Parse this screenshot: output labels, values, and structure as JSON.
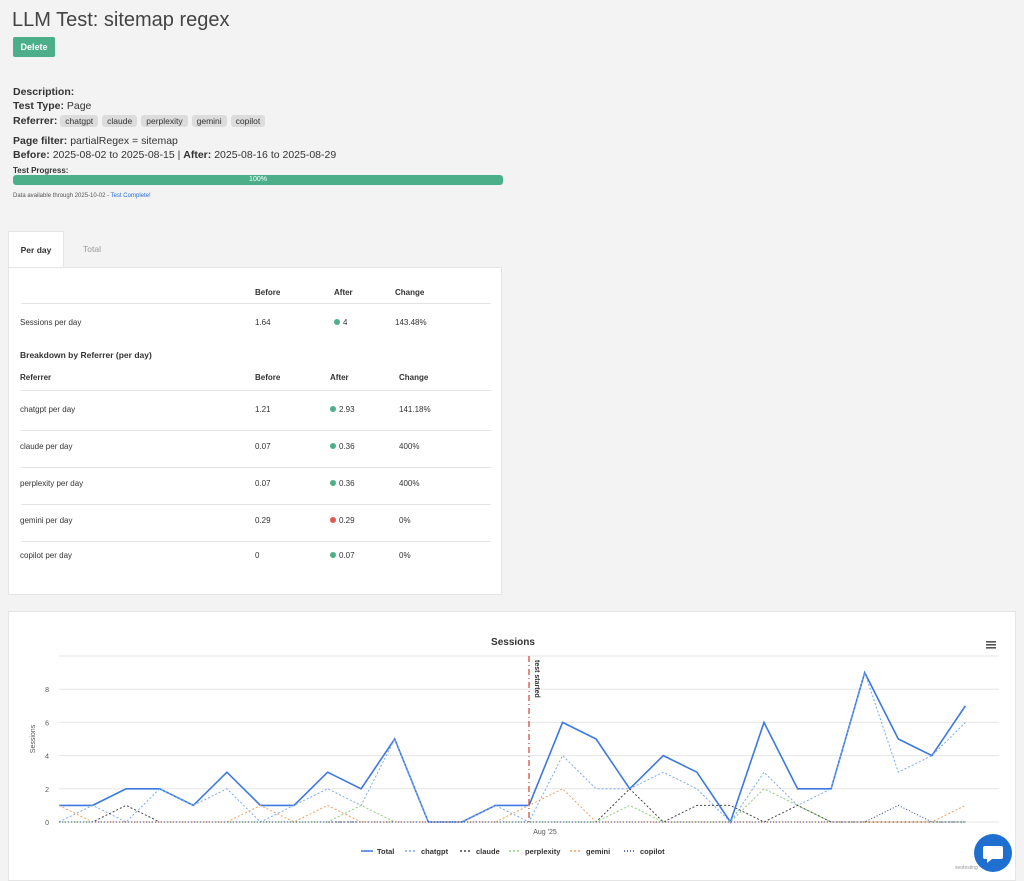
{
  "page": {
    "title": "LLM Test: sitemap regex",
    "delete_label": "Delete"
  },
  "info": {
    "description_label": "Description:",
    "test_type_label": "Test Type:",
    "test_type_value": "Page",
    "referrer_label": "Referrer:",
    "referrers": [
      "chatgpt",
      "claude",
      "perplexity",
      "gemini",
      "copilot"
    ],
    "page_filter_label": "Page filter:",
    "page_filter_value": "partialRegex = sitemap",
    "before_label": "Before:",
    "before_value": "2025-08-02 to 2025-08-15 |",
    "after_label": "After:",
    "after_value": "2025-08-16 to 2025-08-29",
    "progress_label": "Test Progress:",
    "progress_text": "100%",
    "progress_value": 1.0,
    "data_available": "Data available through 2025-10-02 -",
    "test_complete": "Test Complete!"
  },
  "tabs": [
    {
      "label": "Per day",
      "active": true
    },
    {
      "label": "Total",
      "active": false
    }
  ],
  "summary": {
    "headers": [
      "Before",
      "After",
      "Change"
    ],
    "row": {
      "label": "Sessions per day",
      "before": "1.64",
      "after": "4",
      "after_status": "up",
      "change": "143.48%"
    }
  },
  "breakdown": {
    "title": "Breakdown by Referrer (per day)",
    "headers": [
      "Referrer",
      "Before",
      "After",
      "Change"
    ],
    "rows": [
      {
        "label": "chatgpt per day",
        "before": "1.21",
        "after": "2.93",
        "status": "up",
        "change": "141.18%"
      },
      {
        "label": "claude per day",
        "before": "0.07",
        "after": "0.36",
        "status": "up",
        "change": "400%"
      },
      {
        "label": "perplexity per day",
        "before": "0.07",
        "after": "0.36",
        "status": "up",
        "change": "400%"
      },
      {
        "label": "gemini per day",
        "before": "0.29",
        "after": "0.29",
        "status": "down",
        "change": "0%"
      },
      {
        "label": "copilot per day",
        "before": "0",
        "after": "0.07",
        "status": "up",
        "change": "0%"
      }
    ]
  },
  "colors": {
    "up": "#4daf8a",
    "down": "#e05a4f",
    "accent": "#4daf8a"
  },
  "chart_data": {
    "type": "line",
    "title": "Sessions",
    "ylabel": "Sessions",
    "xlabel": "",
    "ylim": [
      0,
      10
    ],
    "yticks": [
      0,
      2,
      4,
      6,
      8
    ],
    "x_tick_label": "Aug '25",
    "x_tick_index": 14,
    "annotation": {
      "label": "test started",
      "index": 14
    },
    "credits": "seotesting",
    "n_points": 29,
    "series": [
      {
        "name": "Total",
        "color": "#3c78e0",
        "dash": "",
        "width": 1.6,
        "values": [
          1,
          1,
          2,
          2,
          1,
          3,
          1,
          1,
          3,
          2,
          5,
          0,
          0,
          1,
          1,
          6,
          5,
          2,
          4,
          3,
          0,
          6,
          2,
          2,
          9,
          5,
          4,
          7,
          null
        ]
      },
      {
        "name": "chatgpt",
        "color": "#7aaaf0",
        "dash": "2,2",
        "width": 1,
        "values": [
          0,
          1,
          0,
          2,
          1,
          2,
          0,
          1,
          2,
          1,
          5,
          0,
          0,
          1,
          0,
          4,
          2,
          2,
          3,
          2,
          0,
          3,
          1,
          2,
          9,
          3,
          4,
          6,
          null
        ]
      },
      {
        "name": "claude",
        "color": "#444444",
        "dash": "2,2",
        "width": 1,
        "values": [
          0,
          0,
          1,
          0,
          0,
          0,
          0,
          0,
          0,
          0,
          0,
          0,
          0,
          0,
          0,
          0,
          0,
          2,
          0,
          1,
          1,
          0,
          1,
          0,
          0,
          0,
          0,
          0,
          null
        ]
      },
      {
        "name": "perplexity",
        "color": "#8fd07a",
        "dash": "2,2",
        "width": 1,
        "values": [
          0,
          0,
          0,
          0,
          0,
          0,
          0,
          0,
          0,
          1,
          0,
          0,
          0,
          0,
          0,
          0,
          0,
          1,
          0,
          0,
          0,
          2,
          1,
          0,
          0,
          0,
          0,
          0,
          null
        ]
      },
      {
        "name": "gemini",
        "color": "#f0a060",
        "dash": "2,2",
        "width": 1,
        "values": [
          1,
          0,
          0,
          0,
          0,
          0,
          1,
          0,
          1,
          0,
          0,
          0,
          0,
          0,
          1,
          2,
          0,
          0,
          0,
          0,
          0,
          0,
          0,
          0,
          0,
          0,
          0,
          1,
          null
        ]
      },
      {
        "name": "copilot",
        "color": "#3040a0",
        "dash": "1,2",
        "width": 1,
        "values": [
          0,
          0,
          0,
          0,
          0,
          0,
          0,
          0,
          0,
          0,
          0,
          0,
          0,
          0,
          0,
          0,
          0,
          0,
          0,
          0,
          0,
          0,
          0,
          0,
          0,
          1,
          0,
          0,
          null
        ]
      }
    ]
  }
}
